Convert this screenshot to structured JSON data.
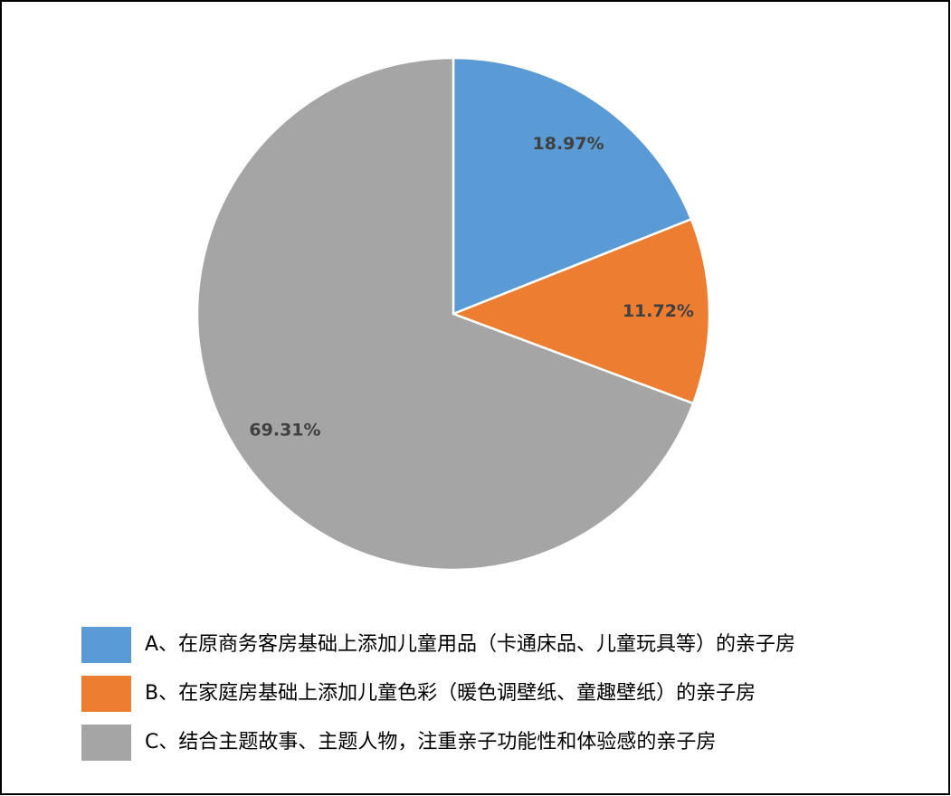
{
  "chart_data": {
    "type": "pie",
    "categories": [
      "A、在原商务客房基础上添加儿童用品（卡通床品、儿童玩具等）的亲子房",
      "B、在家庭房基础上添加儿童色彩（暖色调壁纸、童趣壁纸）的亲子房",
      "C、结合主题故事、主题人物，注重亲子功能性和体验感的亲子房"
    ],
    "values": [
      18.97,
      11.72,
      69.31
    ],
    "value_labels": [
      "18.97%",
      "11.72%",
      "69.31%"
    ],
    "colors": [
      "#5b9bd5",
      "#ed7d31",
      "#a5a5a5"
    ],
    "legend": "bottom"
  }
}
